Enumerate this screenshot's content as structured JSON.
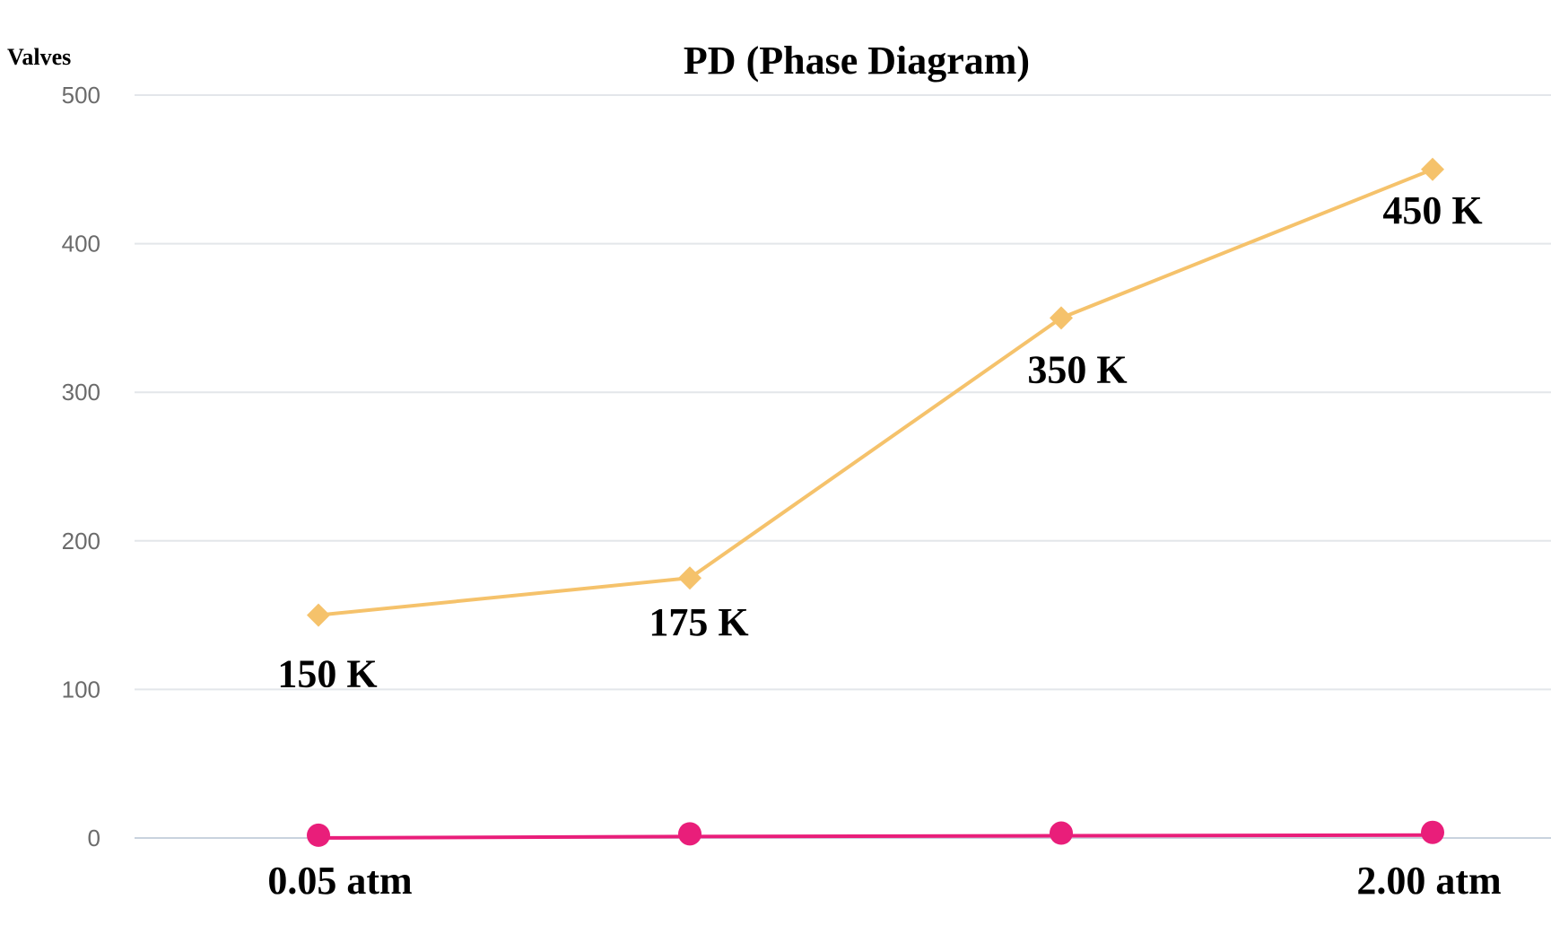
{
  "chart_data": {
    "type": "line",
    "title": "PD (Phase Diagram)",
    "ylabel": "Valves",
    "xlabel": "",
    "ylim": [
      0,
      500
    ],
    "y_ticks": [
      0,
      100,
      200,
      300,
      400,
      500
    ],
    "grid": true,
    "x_tick_labels": [
      {
        "index": 0,
        "label": "0.05 atm"
      },
      {
        "index": 3,
        "label": "2.00 atm"
      }
    ],
    "series": [
      {
        "marker": "diamond",
        "color": "#F5C26B",
        "values": [
          150,
          175,
          350,
          450
        ],
        "labels": [
          "150 K",
          "175 K",
          "350 K",
          "450 K"
        ]
      },
      {
        "marker": "circle",
        "color": "#E91E7A",
        "values": [
          0.05,
          1,
          1.5,
          2
        ]
      }
    ]
  }
}
